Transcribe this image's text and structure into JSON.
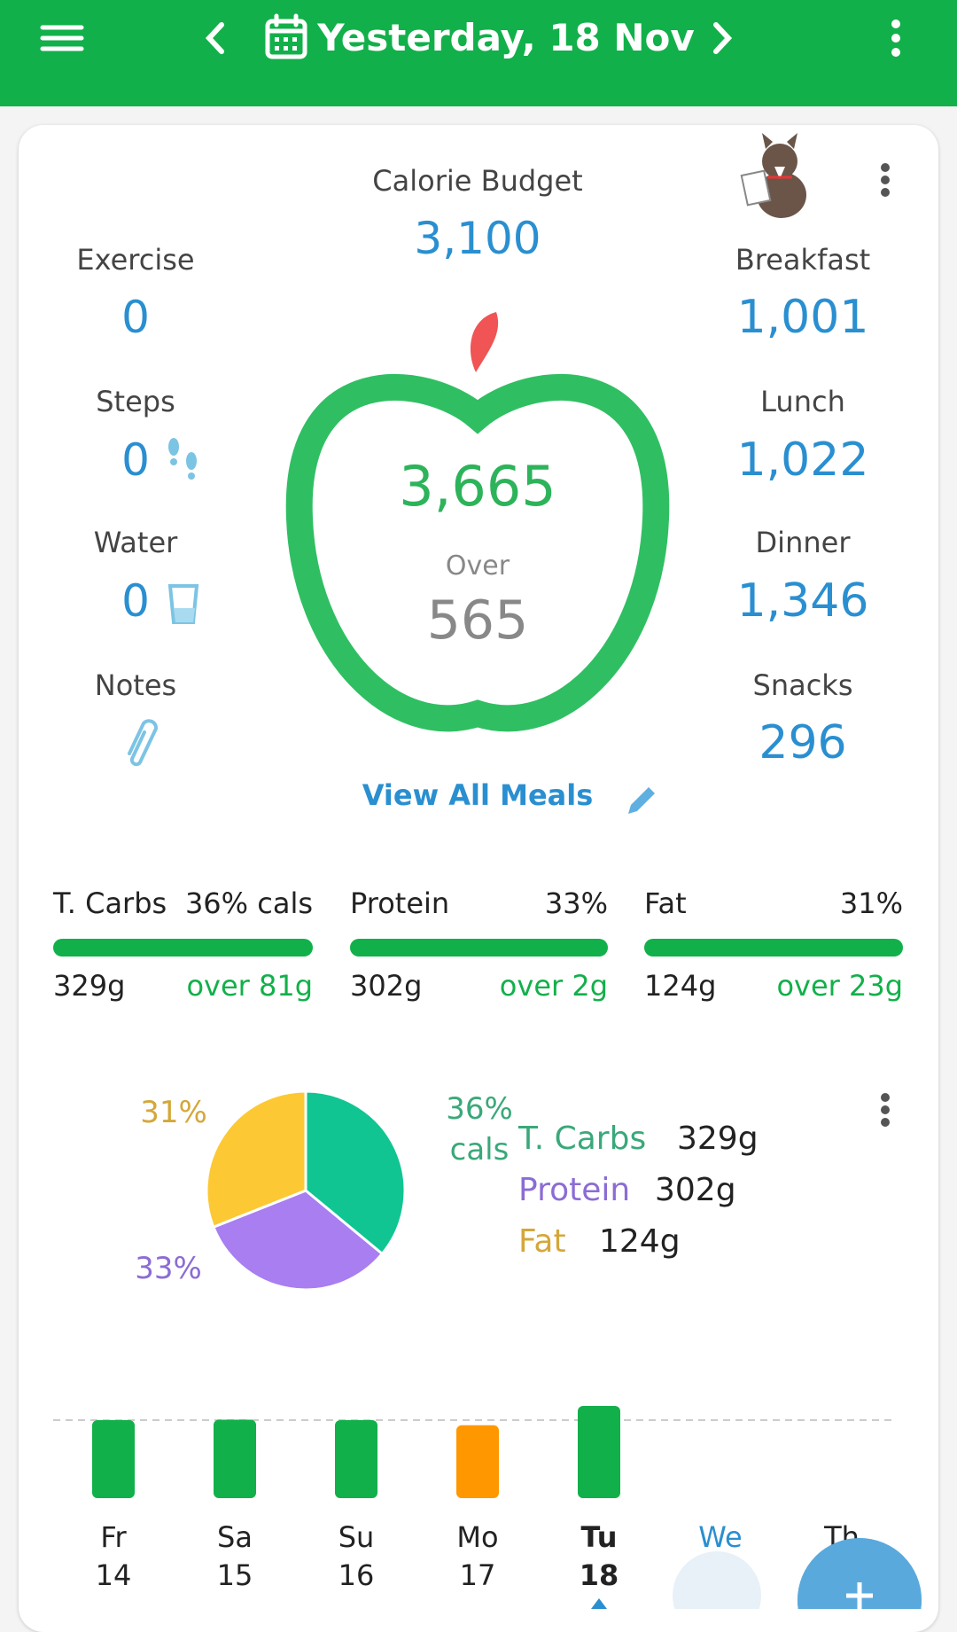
{
  "header": {
    "title": "Yesterday, 18 Nov"
  },
  "budget": {
    "label": "Calorie Budget",
    "value": "3,100"
  },
  "left": [
    {
      "label": "Exercise",
      "value": "0"
    },
    {
      "label": "Steps",
      "value": "0"
    },
    {
      "label": "Water",
      "value": "0"
    },
    {
      "label": "Notes"
    }
  ],
  "right": [
    {
      "label": "Breakfast",
      "value": "1,001"
    },
    {
      "label": "Lunch",
      "value": "1,022"
    },
    {
      "label": "Dinner",
      "value": "1,346"
    },
    {
      "label": "Snacks",
      "value": "296"
    }
  ],
  "center": {
    "consumed": "3,665",
    "status": "Over",
    "difference": "565"
  },
  "link": "View All Meals",
  "macros": [
    {
      "name": "T. Carbs",
      "percent": "36% cals",
      "grams": "329g",
      "delta": "over 81g"
    },
    {
      "name": "Protein",
      "percent": "33%",
      "grams": "302g",
      "delta": "over 2g"
    },
    {
      "name": "Fat",
      "percent": "31%",
      "grams": "124g",
      "delta": "over 23g"
    }
  ],
  "macro_pie": {
    "type": "pie",
    "categories": [
      "T. Carbs",
      "Protein",
      "Fat"
    ],
    "values": [
      36,
      33,
      31
    ],
    "value_labels": [
      "36% cals",
      "33%",
      "31%"
    ],
    "colors": [
      "#10c592",
      "#a87ef0",
      "#fcc935"
    ],
    "label_colors": [
      "#3aa87a",
      "#8c6cd4",
      "#d4a73a"
    ],
    "grams": [
      "329g",
      "302g",
      "124g"
    ]
  },
  "daily_chart": {
    "type": "bar",
    "categories": [
      "Fr",
      "Sa",
      "Su",
      "Mo",
      "Tu",
      "We",
      "Th"
    ],
    "dates": [
      "14",
      "15",
      "16",
      "17",
      "18",
      null,
      null
    ],
    "values": [
      3100,
      3120,
      3100,
      2900,
      3665,
      null,
      null
    ],
    "colors": [
      "#12b04a",
      "#12b04a",
      "#12b04a",
      "#ff9800",
      "#12b04a",
      null,
      null
    ],
    "ylim": [
      0,
      3665
    ],
    "budget_line": 3100
  }
}
